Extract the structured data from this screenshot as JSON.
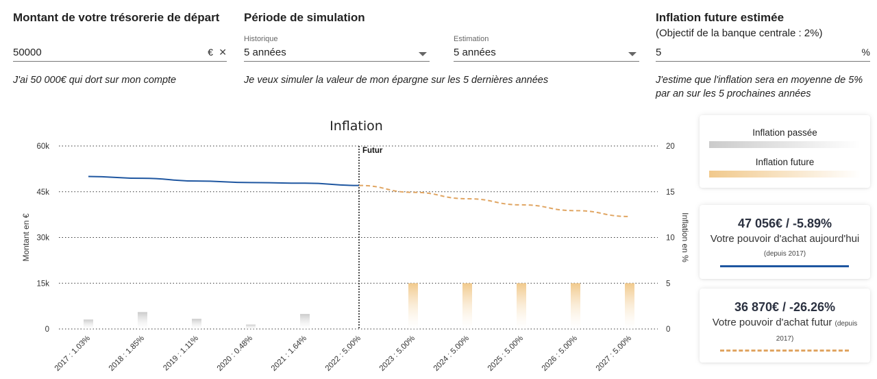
{
  "start_cash": {
    "title": "Montant de votre trésorerie de départ",
    "value": "50000",
    "currency": "€",
    "clear": "✕",
    "helper": "J'ai 50 000€ qui dort sur mon compte"
  },
  "period": {
    "title": "Période de simulation",
    "historic_label": "Historique",
    "historic_value": "5 années",
    "estimate_label": "Estimation",
    "estimate_value": "5 années",
    "helper": "Je veux simuler la valeur de mon épargne sur les 5 dernières années"
  },
  "inflation_input": {
    "title": "Inflation future estimée",
    "subtitle": "(Objectif de la banque centrale : 2%)",
    "value": "5",
    "unit": "%",
    "helper_line1": "J'estime que l'inflation sera en moyenne de 5%",
    "helper_line2": "par an sur les 5 prochaines années"
  },
  "legend_card": {
    "past": "Inflation passée",
    "future": "Inflation future",
    "past_color": "#cbcbcb",
    "future_color": "#f1c98c"
  },
  "today_card": {
    "value": "47 056€ / -5.89%",
    "label": "Votre pouvoir d'achat aujourd'hui",
    "since": "(depuis 2017)",
    "color": "#1e56a0"
  },
  "future_card": {
    "value": "36 870€ / -26.26%",
    "label": "Votre pouvoir d'achat futur",
    "since_a": "(depuis",
    "since_b": "2017)",
    "color": "#e0a562"
  },
  "chart_data": {
    "type": "bar+line",
    "title": "Inflation",
    "ylabel_left": "Montant en €",
    "ylabel_right": "Inflation en %",
    "ylim_left": [
      0,
      60000
    ],
    "ylim_right": [
      0,
      20
    ],
    "yticks_left": [
      "0",
      "15k",
      "30k",
      "45k",
      "60k"
    ],
    "yticks_right": [
      "0",
      "5",
      "10",
      "15",
      "20"
    ],
    "grid": true,
    "future_marker": {
      "label": "Futur",
      "category": "2022 : 5.00%"
    },
    "categories": [
      "2017 : 1.03%",
      "2018 : 1.85%",
      "2019 : 1.11%",
      "2020 : 0.48%",
      "2021 : 1.64%",
      "2022 : 5.00%",
      "2023 : 5.00%",
      "2024 : 5.00%",
      "2025 : 5.00%",
      "2026 : 5.00%",
      "2027 : 5.00%"
    ],
    "inflation_bars": [
      {
        "name": "Inflation passée",
        "color": "#cbcbcb",
        "values": [
          1.03,
          1.85,
          1.11,
          0.48,
          1.64,
          null,
          null,
          null,
          null,
          null,
          null
        ]
      },
      {
        "name": "Inflation future",
        "color": "#f1c98c",
        "values": [
          null,
          null,
          null,
          null,
          null,
          null,
          5.0,
          5.0,
          5.0,
          5.0,
          5.0
        ]
      }
    ],
    "series": [
      {
        "name": "Votre pouvoir d'achat aujourd'hui",
        "color": "#1e56a0",
        "style": "solid",
        "values": [
          50000,
          49400,
          48500,
          48000,
          47800,
          47056,
          null,
          null,
          null,
          null,
          null
        ]
      },
      {
        "name": "Votre pouvoir d'achat futur",
        "color": "#e0a562",
        "style": "dashed",
        "values": [
          null,
          null,
          null,
          null,
          null,
          47056,
          44800,
          42700,
          40700,
          38800,
          36870
        ]
      }
    ]
  }
}
